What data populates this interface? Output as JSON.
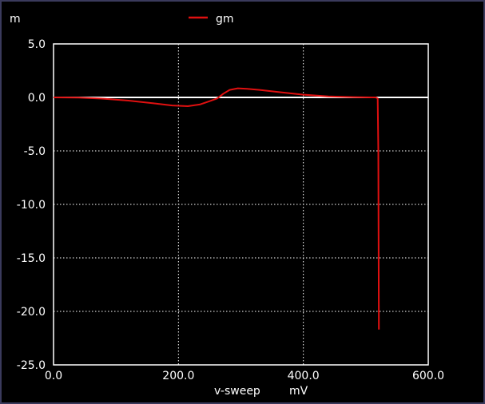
{
  "chart_data": {
    "type": "line",
    "y_unit_prefix": "m",
    "xlabel": "v-sweep",
    "xunit": "mV",
    "xlim": [
      0,
      600
    ],
    "ylim": [
      -25,
      5
    ],
    "x_ticks": [
      0,
      200,
      400,
      600
    ],
    "x_tick_labels": [
      "0.0",
      "200.0",
      "400.0",
      "600.0"
    ],
    "y_ticks": [
      5,
      0,
      -5,
      -10,
      -15,
      -20,
      -25
    ],
    "y_tick_labels": [
      "5.0",
      "0.0",
      "-5.0",
      "-10.0",
      "-15.0",
      "-20.0",
      "-25.0"
    ],
    "grid": true,
    "legend_position": "top-center",
    "zero_line_color": "#ffffff",
    "grid_color": "#ffffff",
    "series": [
      {
        "name": "gm",
        "color": "#e01010",
        "x": [
          0,
          40,
          80,
          120,
          160,
          190,
          215,
          235,
          250,
          262,
          272,
          282,
          295,
          310,
          330,
          360,
          400,
          440,
          480,
          500,
          510,
          516,
          519,
          520,
          520.5,
          521
        ],
        "y": [
          0,
          -0.02,
          -0.12,
          -0.3,
          -0.55,
          -0.75,
          -0.82,
          -0.65,
          -0.35,
          -0.1,
          0.35,
          0.7,
          0.85,
          0.8,
          0.7,
          0.5,
          0.25,
          0.1,
          0.03,
          0.01,
          0.0,
          0.0,
          -0.1,
          -5,
          -15,
          -21.7
        ]
      }
    ]
  }
}
